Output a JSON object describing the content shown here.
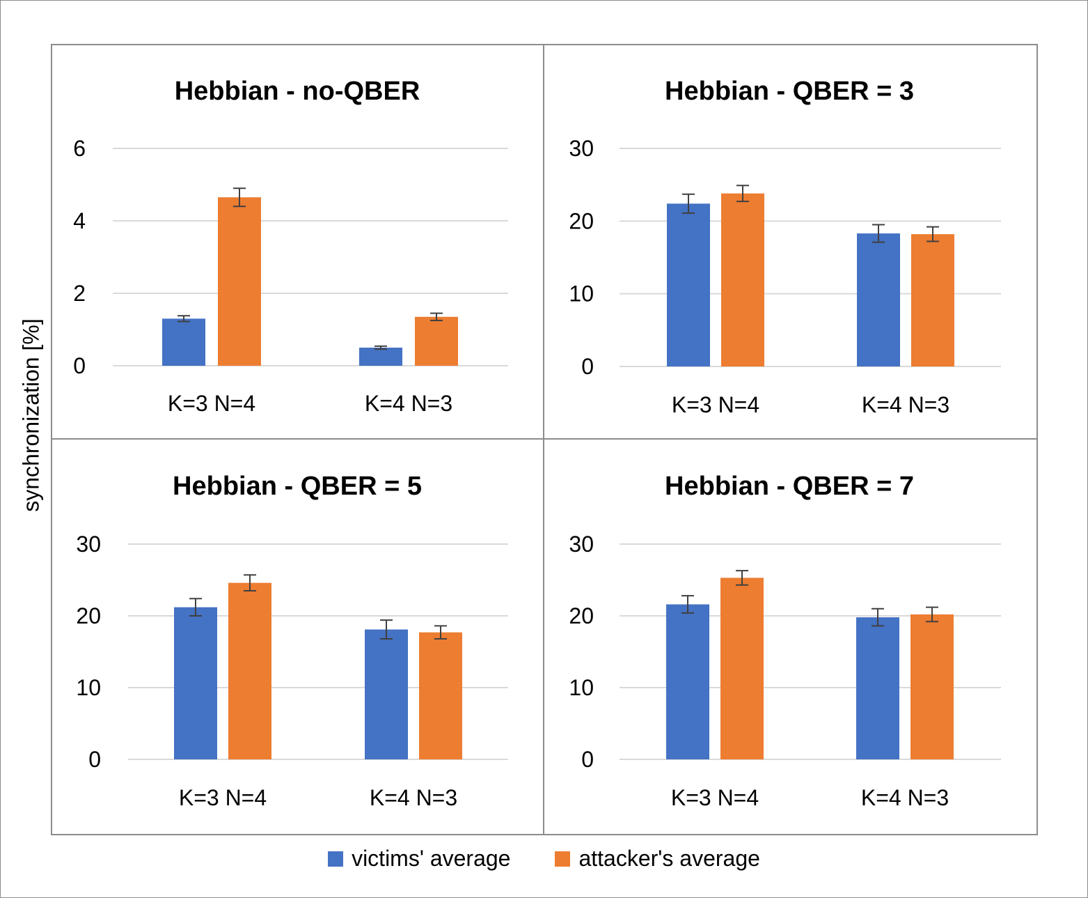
{
  "colors": {
    "victims": "#4472C4",
    "attacker": "#ED7D31",
    "grid": "#d9d9d9",
    "error": "#404040"
  },
  "y_axis_label": "synchronization [%]",
  "legend": [
    {
      "label": "victims' average",
      "color": "#4472C4"
    },
    {
      "label": "attacker's average",
      "color": "#ED7D31"
    }
  ],
  "chart_data": [
    {
      "type": "bar",
      "title": "Hebbian - no-QBER",
      "categories": [
        "K=3 N=4",
        "K=4 N=3"
      ],
      "ylim": [
        0,
        6
      ],
      "yticks": [
        0,
        2,
        4,
        6
      ],
      "series": [
        {
          "name": "victims' average",
          "values": [
            1.3,
            0.5
          ],
          "errors": [
            0.08,
            0.04
          ]
        },
        {
          "name": "attacker's average",
          "values": [
            4.65,
            1.35
          ],
          "errors": [
            0.25,
            0.1
          ]
        }
      ]
    },
    {
      "type": "bar",
      "title": "Hebbian - QBER = 3",
      "categories": [
        "K=3 N=4",
        "K=4 N=3"
      ],
      "ylim": [
        0,
        30
      ],
      "yticks": [
        0,
        10,
        20,
        30
      ],
      "series": [
        {
          "name": "victims' average",
          "values": [
            22.4,
            18.3
          ],
          "errors": [
            1.3,
            1.2
          ]
        },
        {
          "name": "attacker's average",
          "values": [
            23.8,
            18.2
          ],
          "errors": [
            1.1,
            1.0
          ]
        }
      ]
    },
    {
      "type": "bar",
      "title": "Hebbian - QBER = 5",
      "categories": [
        "K=3 N=4",
        "K=4 N=3"
      ],
      "ylim": [
        0,
        30
      ],
      "yticks": [
        0,
        10,
        20,
        30
      ],
      "series": [
        {
          "name": "victims' average",
          "values": [
            21.2,
            18.1
          ],
          "errors": [
            1.2,
            1.3
          ]
        },
        {
          "name": "attacker's average",
          "values": [
            24.6,
            17.7
          ],
          "errors": [
            1.1,
            0.9
          ]
        }
      ]
    },
    {
      "type": "bar",
      "title": "Hebbian - QBER = 7",
      "categories": [
        "K=3 N=4",
        "K=4 N=3"
      ],
      "ylim": [
        0,
        30
      ],
      "yticks": [
        0,
        10,
        20,
        30
      ],
      "series": [
        {
          "name": "victims' average",
          "values": [
            21.6,
            19.8
          ],
          "errors": [
            1.2,
            1.2
          ]
        },
        {
          "name": "attacker's average",
          "values": [
            25.3,
            20.2
          ],
          "errors": [
            1.0,
            1.0
          ]
        }
      ]
    }
  ]
}
